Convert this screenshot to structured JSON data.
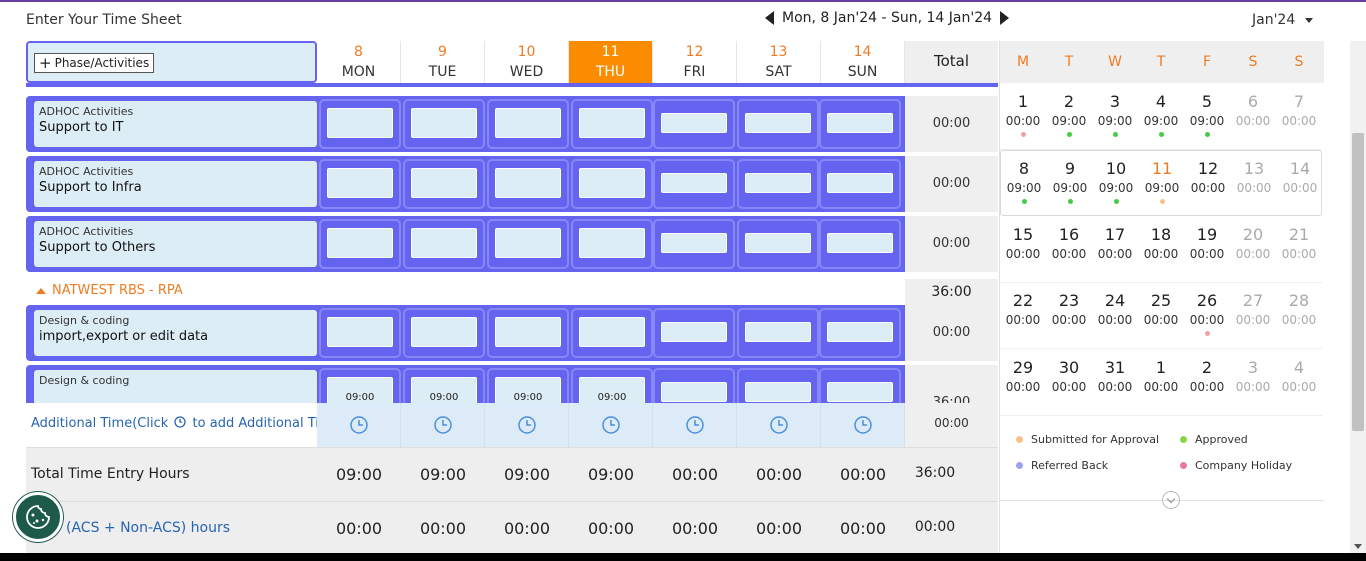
{
  "header": {
    "title": "Enter Your Time Sheet",
    "week_range": "Mon, 8 Jan'24 - Sun, 14 Jan'24",
    "month": "Jan'24"
  },
  "grid": {
    "phase_button": "Phase/Activities",
    "total_label": "Total",
    "days": [
      {
        "num": "8",
        "name": "MON"
      },
      {
        "num": "9",
        "name": "TUE"
      },
      {
        "num": "10",
        "name": "WED"
      },
      {
        "num": "11",
        "name": "THU"
      },
      {
        "num": "12",
        "name": "FRI"
      },
      {
        "num": "13",
        "name": "SAT"
      },
      {
        "num": "14",
        "name": "SUN"
      }
    ],
    "rows": [
      {
        "category": "ADHOC Activities",
        "name": "Support to IT",
        "total": "00:00"
      },
      {
        "category": "ADHOC Activities",
        "name": "Support to Infra",
        "total": "00:00"
      },
      {
        "category": "ADHOC Activities",
        "name": "Support to Others",
        "total": "00:00"
      }
    ],
    "section": {
      "label": "NATWEST RBS - RPA",
      "total": "36:00"
    },
    "section_rows": [
      {
        "category": "Design & coding",
        "name": "import,export or edit data",
        "total": "00:00"
      },
      {
        "category": "Design & coding",
        "name": "",
        "total": "36:00",
        "cell_value": "09:00"
      }
    ],
    "additional": {
      "label_pre": "Additional Time(Click",
      "label_post": "to add Additional Time)",
      "total": "00:00"
    },
    "total_entry": {
      "label": "Total Time Entry Hours",
      "values": [
        "09:00",
        "09:00",
        "09:00",
        "09:00",
        "00:00",
        "00:00",
        "00:00"
      ],
      "total": "36:00"
    },
    "acs": {
      "label": "(ACS + Non-ACS) hours",
      "values": [
        "00:00",
        "00:00",
        "00:00",
        "00:00",
        "00:00",
        "00:00",
        "00:00"
      ],
      "total": "00:00"
    }
  },
  "calendar": {
    "weekdays": [
      "M",
      "T",
      "W",
      "T",
      "F",
      "S",
      "S"
    ],
    "weeks": [
      [
        {
          "d": "1",
          "h": "00:00",
          "dot": "#f0a0a0"
        },
        {
          "d": "2",
          "h": "09:00",
          "dot": "#44cc44"
        },
        {
          "d": "3",
          "h": "09:00",
          "dot": "#44cc44"
        },
        {
          "d": "4",
          "h": "09:00",
          "dot": "#44cc44"
        },
        {
          "d": "5",
          "h": "09:00",
          "dot": "#44cc44"
        },
        {
          "d": "6",
          "h": "00:00",
          "dot": ""
        },
        {
          "d": "7",
          "h": "00:00",
          "dot": ""
        }
      ],
      [
        {
          "d": "8",
          "h": "09:00",
          "dot": "#44cc44"
        },
        {
          "d": "9",
          "h": "09:00",
          "dot": "#44cc44"
        },
        {
          "d": "10",
          "h": "09:00",
          "dot": "#44cc44"
        },
        {
          "d": "11",
          "h": "09:00",
          "dot": "#f5c28a"
        },
        {
          "d": "12",
          "h": "00:00",
          "dot": ""
        },
        {
          "d": "13",
          "h": "00:00",
          "dot": ""
        },
        {
          "d": "14",
          "h": "00:00",
          "dot": ""
        }
      ],
      [
        {
          "d": "15",
          "h": "00:00",
          "dot": ""
        },
        {
          "d": "16",
          "h": "00:00",
          "dot": ""
        },
        {
          "d": "17",
          "h": "00:00",
          "dot": ""
        },
        {
          "d": "18",
          "h": "00:00",
          "dot": ""
        },
        {
          "d": "19",
          "h": "00:00",
          "dot": ""
        },
        {
          "d": "20",
          "h": "00:00",
          "dot": ""
        },
        {
          "d": "21",
          "h": "00:00",
          "dot": ""
        }
      ],
      [
        {
          "d": "22",
          "h": "00:00",
          "dot": ""
        },
        {
          "d": "23",
          "h": "00:00",
          "dot": ""
        },
        {
          "d": "24",
          "h": "00:00",
          "dot": ""
        },
        {
          "d": "25",
          "h": "00:00",
          "dot": ""
        },
        {
          "d": "26",
          "h": "00:00",
          "dot": "#f0a0a0"
        },
        {
          "d": "27",
          "h": "00:00",
          "dot": ""
        },
        {
          "d": "28",
          "h": "00:00",
          "dot": ""
        }
      ],
      [
        {
          "d": "29",
          "h": "00:00",
          "dot": ""
        },
        {
          "d": "30",
          "h": "00:00",
          "dot": ""
        },
        {
          "d": "31",
          "h": "00:00",
          "dot": ""
        },
        {
          "d": "1",
          "h": "00:00",
          "dot": ""
        },
        {
          "d": "2",
          "h": "00:00",
          "dot": ""
        },
        {
          "d": "3",
          "h": "00:00",
          "dot": ""
        },
        {
          "d": "4",
          "h": "00:00",
          "dot": ""
        }
      ]
    ],
    "legend": [
      {
        "label": "Submitted for Approval",
        "color": "#f5c28a"
      },
      {
        "label": "Approved",
        "color": "#8ad64a"
      },
      {
        "label": "Referred Back",
        "color": "#a0a0f0"
      },
      {
        "label": "Company Holiday",
        "color": "#e87aa0"
      }
    ]
  },
  "colors": {
    "accent_orange": "#fb8c00",
    "row_blue": "#6464f0",
    "input_fill": "#dcedf5",
    "link_blue": "#2864b4"
  }
}
